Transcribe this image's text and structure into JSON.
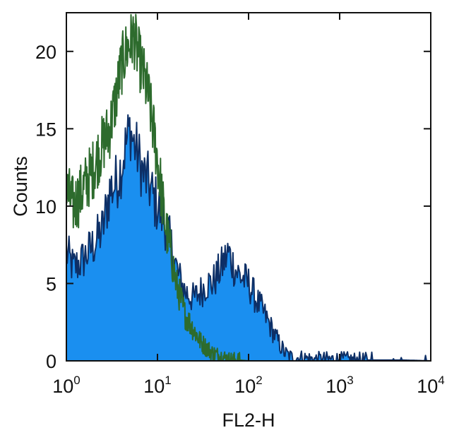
{
  "chart_data": {
    "type": "area",
    "title": "",
    "xlabel": "FL2-H",
    "ylabel": "Counts",
    "x_scale": "log",
    "xlim": [
      1,
      10000
    ],
    "ylim": [
      0,
      22.5
    ],
    "x_ticks": [
      {
        "value": 1,
        "base": "10",
        "exp": "0"
      },
      {
        "value": 10,
        "base": "10",
        "exp": "1"
      },
      {
        "value": 100,
        "base": "10",
        "exp": "2"
      },
      {
        "value": 1000,
        "base": "10",
        "exp": "3"
      },
      {
        "value": 10000,
        "base": "10",
        "exp": "4"
      }
    ],
    "y_ticks": [
      0,
      5,
      10,
      15,
      20
    ],
    "grid": false,
    "legend": "none",
    "series": [
      {
        "style": "filled",
        "fill_color": "#1a8ff0",
        "line_color": "#0d2f66",
        "x": [
          1,
          1.2,
          1.5,
          2,
          2.5,
          3,
          3.5,
          4,
          4.5,
          5,
          5.5,
          6,
          7,
          8,
          9,
          10,
          12,
          14,
          17,
          20,
          25,
          30,
          35,
          40,
          45,
          50,
          60,
          70,
          80,
          100,
          120,
          150,
          200,
          250,
          300,
          400,
          500,
          700,
          1000,
          2000,
          5000,
          10000
        ],
        "y": [
          7,
          6,
          6.5,
          7.5,
          8.5,
          11,
          11.5,
          12.5,
          14,
          15,
          14,
          13.5,
          12,
          11.5,
          10.5,
          10,
          9,
          7.5,
          5.5,
          4.5,
          4,
          4.5,
          5,
          5,
          5.5,
          6,
          7,
          6,
          5.5,
          5,
          4,
          3,
          1.5,
          0.5,
          0.2,
          0.2,
          0.1,
          0.1,
          0.1,
          0.05,
          0.05,
          0
        ]
      },
      {
        "style": "line",
        "line_color": "#2d6b2d",
        "x": [
          1,
          1.2,
          1.5,
          2,
          2.5,
          3,
          3.5,
          4,
          4.5,
          5,
          5.5,
          6,
          7,
          8,
          9,
          10,
          11,
          12,
          14,
          16,
          18,
          20,
          25,
          30,
          40,
          50,
          60,
          80,
          100
        ],
        "y": [
          11,
          10,
          11,
          12.5,
          14,
          15,
          17,
          19,
          20,
          20.5,
          21,
          20,
          18.5,
          17,
          15,
          13,
          11,
          9,
          7,
          5,
          4,
          3,
          2,
          1.2,
          0.5,
          0.3,
          0.1,
          0.05,
          0
        ]
      }
    ]
  }
}
